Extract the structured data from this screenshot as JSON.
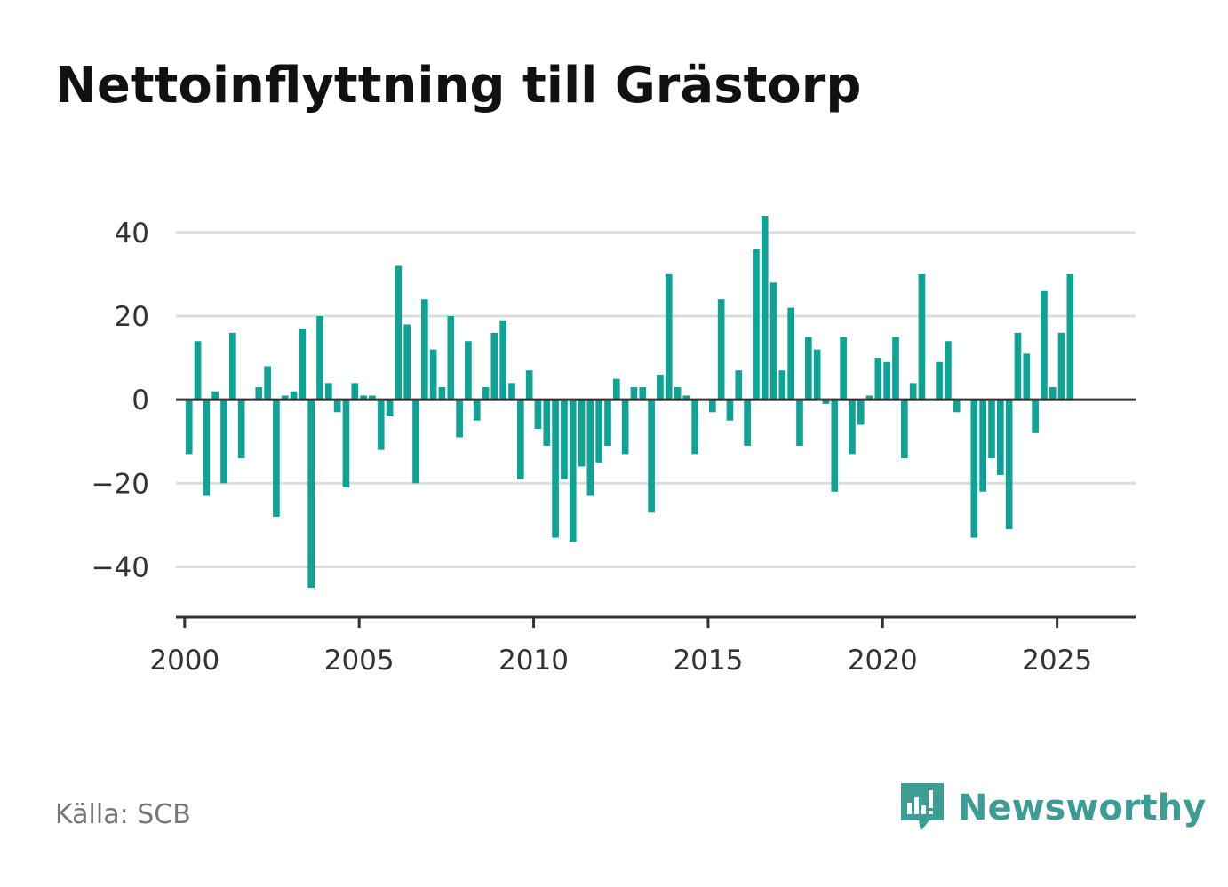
{
  "title": "Nettoinflyttning till Grästorp",
  "source": "Källa: SCB",
  "brand": {
    "name": "Newsworthy",
    "icon": "newsworthy-logo-icon",
    "color": "#3b9d93"
  },
  "chart_data": {
    "type": "bar",
    "title": "Nettoinflyttning till Grästorp",
    "xlabel": "",
    "ylabel": "",
    "bar_color": "#0fa396",
    "grid": true,
    "ylim": [
      -52,
      44
    ],
    "xlim": [
      1999.75,
      2027.25
    ],
    "yticks": [
      -40,
      -20,
      0,
      20,
      40
    ],
    "ytick_labels": [
      "−40",
      "−20",
      "0",
      "20",
      "40"
    ],
    "xticks": [
      2000,
      2005,
      2010,
      2015,
      2020,
      2025
    ],
    "xtick_labels": [
      "2000",
      "2005",
      "2010",
      "2015",
      "2020",
      "2025"
    ],
    "series": [
      {
        "start": 2000,
        "step": 0.25,
        "values": [
          -13,
          14,
          -23,
          2,
          -20,
          16,
          -14,
          0,
          3,
          8,
          -28,
          1,
          2,
          17,
          -45,
          20,
          4,
          -3,
          -21,
          4,
          1,
          1,
          -12,
          -4,
          32,
          18,
          -20,
          24,
          12,
          3,
          20,
          -9,
          14,
          -5,
          3,
          16,
          19,
          4,
          -19,
          7,
          -7,
          -11,
          -33,
          -19,
          -34,
          -16,
          -23,
          -15,
          -11,
          5,
          -13,
          3,
          3,
          -27,
          6,
          30,
          3,
          1,
          -13,
          0,
          -3,
          24,
          -5,
          7,
          -11,
          36,
          44,
          28,
          7,
          22,
          -11,
          15,
          12,
          -1,
          -22,
          15,
          -13,
          -6,
          1,
          10,
          9,
          15,
          -14,
          4,
          30,
          0,
          9,
          14,
          -3,
          0,
          -33,
          -22,
          -14,
          -18,
          -31,
          16,
          11,
          -8,
          26,
          3,
          16,
          30
        ]
      }
    ]
  }
}
